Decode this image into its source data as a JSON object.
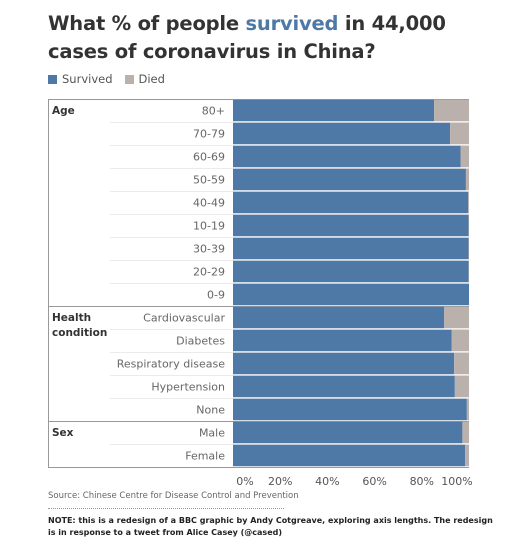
{
  "title": {
    "part1": "What % of people ",
    "highlight": "survived",
    "part2": " in 44,000 cases of coronavirus in China?"
  },
  "legend": {
    "survived_label": "Survived",
    "died_label": "Died"
  },
  "colors": {
    "survived": "#4e79a7",
    "died": "#bab0ac",
    "highlight": "#4e79a7"
  },
  "chart_data": {
    "type": "bar",
    "orientation": "horizontal",
    "stacked": true,
    "groups": [
      {
        "name": "Age",
        "categories": [
          "80+",
          "70-79",
          "60-69",
          "50-59",
          "40-49",
          "10-19",
          "30-39",
          "20-29",
          "0-9"
        ],
        "survived": [
          85.2,
          92.0,
          96.4,
          98.7,
          99.6,
          99.8,
          99.8,
          99.8,
          100
        ],
        "died": [
          14.8,
          8.0,
          3.6,
          1.3,
          0.4,
          0.2,
          0.2,
          0.2,
          0
        ]
      },
      {
        "name": "Health condition",
        "categories": [
          "Cardiovascular",
          "Diabetes",
          "Respiratory disease",
          "Hypertension",
          "None"
        ],
        "survived": [
          89.5,
          92.7,
          93.7,
          94.0,
          99.1
        ],
        "died": [
          10.5,
          7.3,
          6.3,
          6.0,
          0.9
        ]
      },
      {
        "name": "Sex",
        "categories": [
          "Male",
          "Female"
        ],
        "survived": [
          97.2,
          98.3
        ],
        "died": [
          2.8,
          1.7
        ]
      }
    ],
    "series": [
      {
        "name": "Survived"
      },
      {
        "name": "Died"
      }
    ],
    "xticks": [
      "0%",
      "20%",
      "40%",
      "60%",
      "80%",
      "100%"
    ],
    "xlim": [
      0,
      100
    ],
    "legend_position": "top-left",
    "grid": false
  },
  "source": "Source: Chinese Centre for Disease Control and Prevention",
  "note": "NOTE: this is a redesign of a BBC graphic by Andy Cotgreave, exploring axis lengths. The redesign is in response to a tweet from Alice Casey (@cased)"
}
